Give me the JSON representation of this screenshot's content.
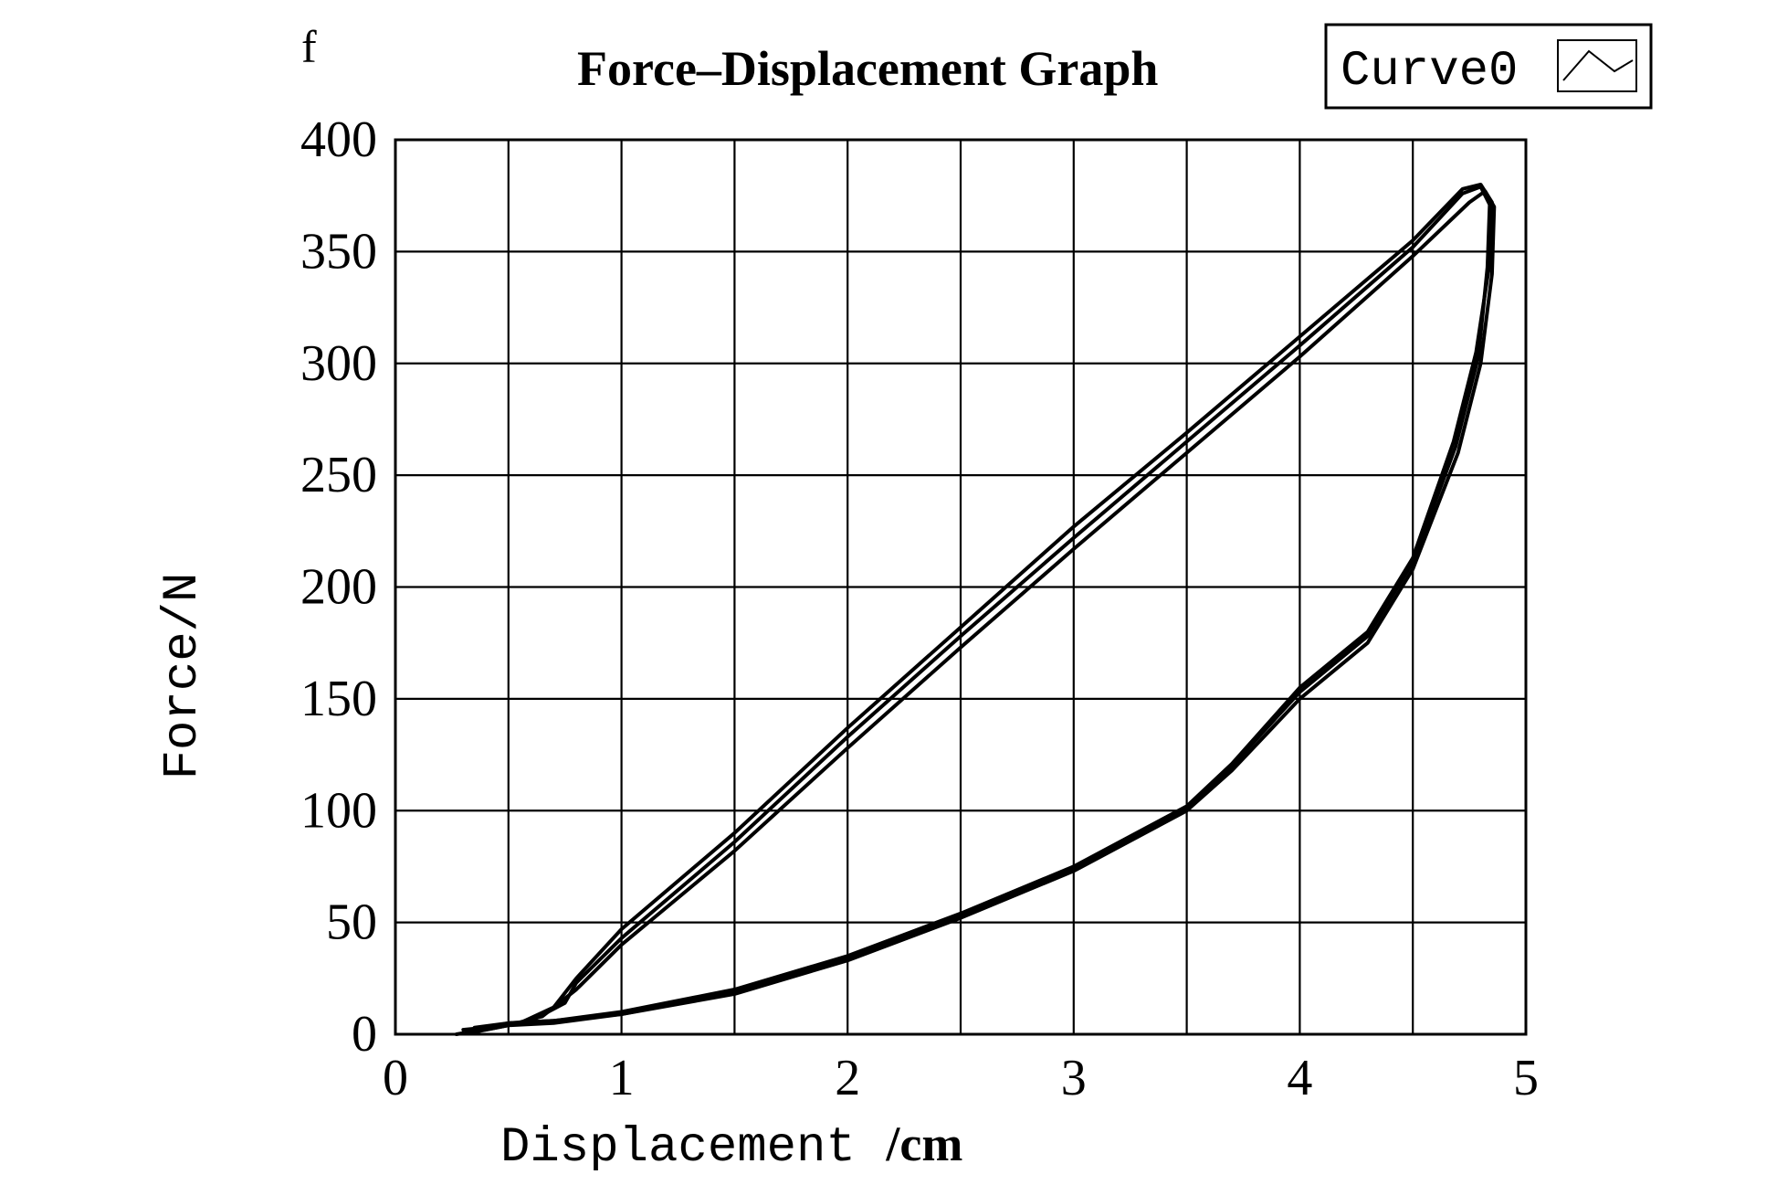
{
  "panel_label": "f",
  "chart_data": {
    "type": "line",
    "title": "Force–Displacement Graph",
    "xlabel": "Displacement",
    "xunit": "/cm",
    "ylabel": "Force/N",
    "xlim": [
      0,
      5
    ],
    "ylim": [
      0,
      400
    ],
    "x_ticks": [
      0,
      1,
      2,
      3,
      4,
      5
    ],
    "y_ticks": [
      0,
      50,
      100,
      150,
      200,
      250,
      300,
      350,
      400
    ],
    "x_gridlines": [
      0.5,
      1,
      1.5,
      2,
      2.5,
      3,
      3.5,
      4,
      4.5,
      5
    ],
    "y_gridlines": [
      50,
      100,
      150,
      200,
      250,
      300,
      350,
      400
    ],
    "grid": true,
    "legend": {
      "position": "top-right",
      "entries": [
        "Curve0"
      ]
    },
    "series": [
      {
        "name": "Curve0",
        "color": "#000000",
        "x": [
          0.27,
          0.5,
          0.65,
          0.8,
          1.0,
          1.5,
          2.0,
          2.5,
          3.0,
          3.5,
          4.0,
          4.5,
          4.75,
          4.82,
          4.86,
          4.85,
          4.8,
          4.7,
          4.5,
          4.3,
          4.0,
          3.7,
          3.5,
          3.0,
          2.5,
          2.0,
          1.5,
          1.0,
          0.7,
          0.5,
          0.3
        ],
        "y": [
          0,
          4,
          8,
          20,
          40,
          82,
          128,
          173,
          217,
          260,
          303,
          348,
          372,
          377,
          370,
          340,
          300,
          260,
          208,
          175,
          150,
          118,
          100,
          73,
          52,
          33,
          18,
          9,
          5,
          4,
          2
        ]
      },
      {
        "name": "",
        "color": "#000000",
        "x": [
          0.35,
          0.55,
          0.7,
          0.8,
          1.0,
          1.5,
          2.0,
          2.5,
          3.0,
          3.5,
          4.0,
          4.5,
          4.72,
          4.8,
          4.85,
          4.84,
          4.78,
          4.68,
          4.5,
          4.3,
          4.0,
          3.7,
          3.5,
          3.0,
          2.5,
          2.0,
          1.5,
          1.0,
          0.7,
          0.5,
          0.35
        ],
        "y": [
          1,
          5,
          12,
          25,
          47,
          90,
          137,
          182,
          227,
          269,
          312,
          355,
          378,
          380,
          372,
          345,
          305,
          265,
          213,
          180,
          155,
          121,
          102,
          75,
          54,
          35,
          20,
          10,
          6,
          5,
          3
        ]
      },
      {
        "name": "",
        "color": "#000000",
        "x": [
          0.4,
          0.6,
          0.75,
          0.8,
          1.0,
          1.5,
          2.0,
          2.5,
          3.0,
          3.5,
          4.0,
          4.5,
          4.72,
          4.8,
          4.84,
          4.83,
          4.79,
          4.69,
          4.5,
          4.3,
          4.0,
          3.7,
          3.5,
          3.0,
          2.5,
          2.0,
          1.5,
          1.0,
          0.7,
          0.5,
          0.4
        ],
        "y": [
          2,
          6,
          14,
          23,
          43,
          86,
          133,
          178,
          222,
          265,
          308,
          352,
          376,
          379,
          371,
          343,
          303,
          263,
          211,
          178,
          153,
          120,
          101,
          74,
          53,
          34,
          19,
          9,
          6,
          5,
          3
        ]
      }
    ]
  }
}
